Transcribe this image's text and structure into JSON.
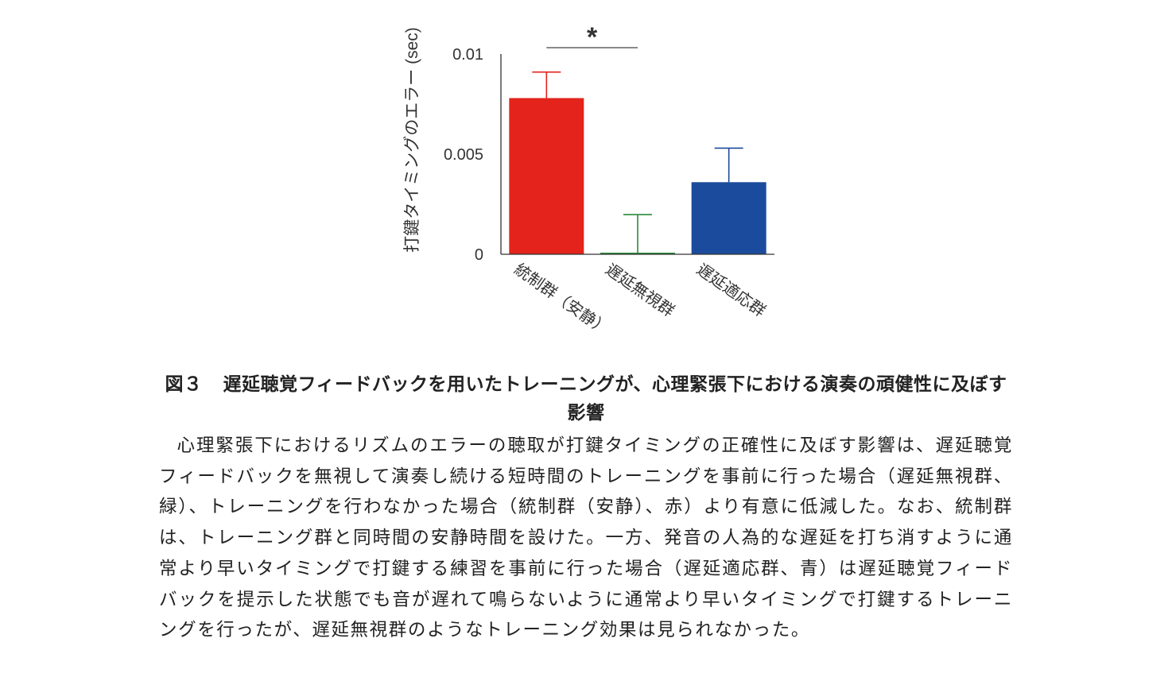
{
  "chart_data": {
    "type": "bar",
    "categories": [
      "統制群（安静）",
      "遅延無視群",
      "遅延適応群"
    ],
    "values": [
      0.0078,
      8e-05,
      0.0036
    ],
    "errors": [
      0.0013,
      0.0019,
      0.0017
    ],
    "colors": [
      "#e3231c",
      "#2a8a3a",
      "#1b4b9c"
    ],
    "ylabel": "打鍵タイミングのエラー (sec)",
    "ylim": [
      0,
      0.01
    ],
    "yticks": [
      0,
      0.005,
      0.01
    ],
    "ytick_labels": [
      "0",
      "0.005",
      "0.01"
    ],
    "significance": {
      "from": 0,
      "to": 1,
      "label": "*"
    },
    "grid": false
  },
  "caption": {
    "figure_number": "図３",
    "title": "遅延聴覚フィードバックを用いたトレーニングが、心理緊張下における演奏の頑健性に及ぼす影響",
    "body": "心理緊張下におけるリズムのエラーの聴取が打鍵タイミングの正確性に及ぼす影響は、遅延聴覚フィードバックを無視して演奏し続ける短時間のトレーニングを事前に行った場合（遅延無視群、緑）、トレーニングを行わなかった場合（統制群（安静）、赤）より有意に低減した。なお、統制群は、トレーニング群と同時間の安静時間を設けた。一方、発音の人為的な遅延を打ち消すように通常より早いタイミングで打鍵する練習を事前に行った場合（遅延適応群、青）は遅延聴覚フィードバックを提示した状態でも音が遅れて鳴らないように通常より早いタイミングで打鍵するトレーニングを行ったが、遅延無視群のようなトレーニング効果は見られなかった。"
  }
}
